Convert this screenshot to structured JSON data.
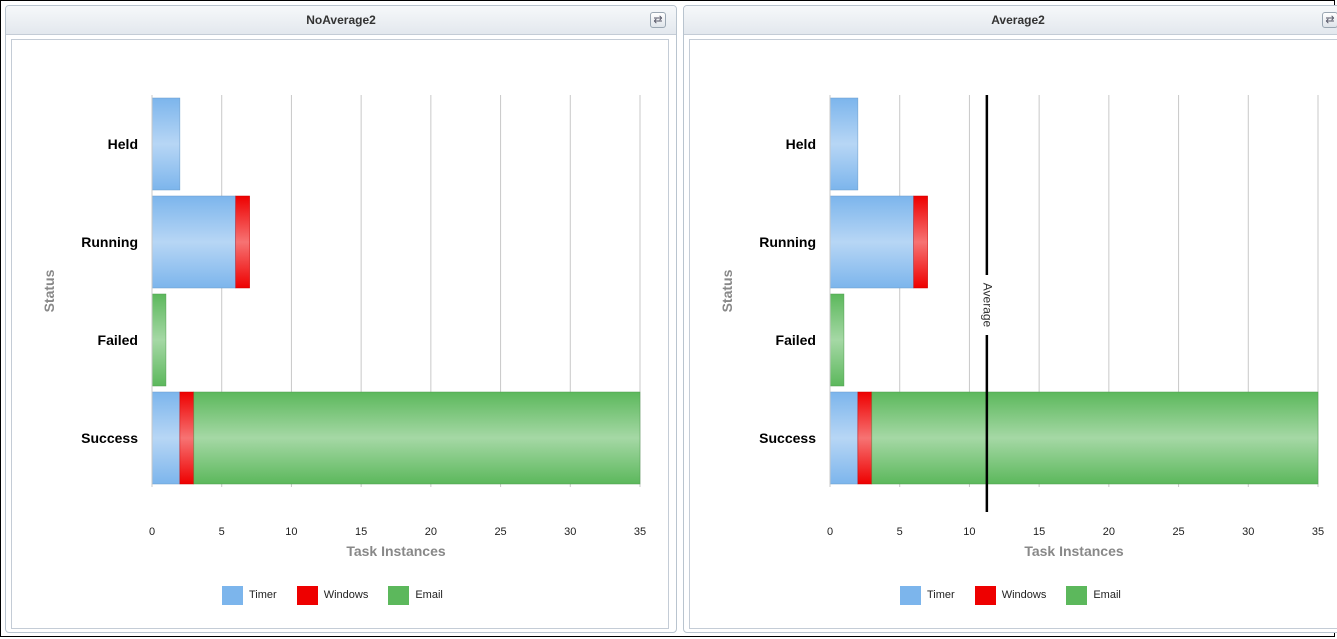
{
  "panels": [
    {
      "title": "NoAverage2",
      "refresh_icon": "refresh-icon",
      "refresh_glyph": "⇄",
      "chart_data": {
        "type": "bar",
        "orientation": "horizontal",
        "stacked": true,
        "categories": [
          "Held",
          "Running",
          "Failed",
          "Success"
        ],
        "series": [
          {
            "name": "Timer",
            "values": [
              2,
              6,
              0,
              2
            ],
            "color": "#7cb5ec"
          },
          {
            "name": "Windows",
            "values": [
              0,
              1,
              0,
              1
            ],
            "color": "#ee0000"
          },
          {
            "name": "Email",
            "values": [
              0,
              0,
              1,
              32
            ],
            "color": "#5cb85c"
          }
        ],
        "xlabel": "Task Instances",
        "ylabel": "Status",
        "xlim": [
          0,
          35
        ],
        "xticks": [
          0,
          5,
          10,
          15,
          20,
          25,
          30,
          35
        ],
        "grid": true,
        "legend": "bottom-center"
      }
    },
    {
      "title": "Average2",
      "refresh_icon": "refresh-icon",
      "refresh_glyph": "⇄",
      "chart_data": {
        "type": "bar",
        "orientation": "horizontal",
        "stacked": true,
        "categories": [
          "Held",
          "Running",
          "Failed",
          "Success"
        ],
        "series": [
          {
            "name": "Timer",
            "values": [
              2,
              6,
              0,
              2
            ],
            "color": "#7cb5ec"
          },
          {
            "name": "Windows",
            "values": [
              0,
              1,
              0,
              1
            ],
            "color": "#ee0000"
          },
          {
            "name": "Email",
            "values": [
              0,
              0,
              1,
              32
            ],
            "color": "#5cb85c"
          }
        ],
        "xlabel": "Task Instances",
        "ylabel": "Status",
        "xlim": [
          0,
          35
        ],
        "xticks": [
          0,
          5,
          10,
          15,
          20,
          25,
          30,
          35
        ],
        "grid": true,
        "legend": "bottom-center",
        "reference_line": {
          "label": "Average",
          "value": 11.25
        }
      }
    }
  ]
}
